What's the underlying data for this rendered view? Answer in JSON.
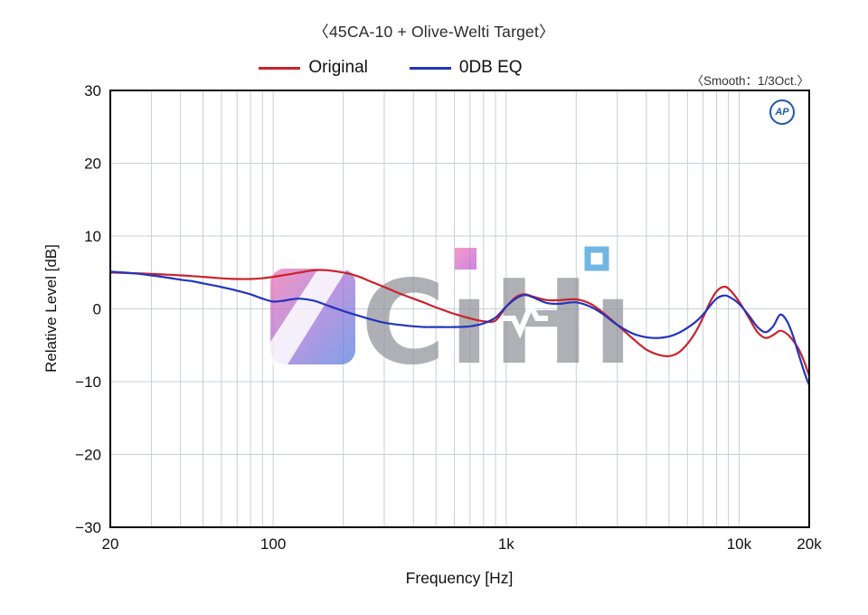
{
  "chart_data": {
    "type": "line",
    "title": "〈45CA-10 + Olive-Welti Target〉",
    "smooth_note": "〈Smooth：1/3Oct.〉",
    "xlabel": "Frequency [Hz]",
    "ylabel": "Relative Level [dB]",
    "x_scale": "log",
    "xlim": [
      20,
      20000
    ],
    "ylim": [
      -30,
      30
    ],
    "grid": true,
    "grid_color": "#c9ced8",
    "axis_color": "#000000",
    "legend_position": "top-center",
    "x_ticks": [
      {
        "value": 20,
        "label": "20"
      },
      {
        "value": 100,
        "label": "100"
      },
      {
        "value": 1000,
        "label": "1k"
      },
      {
        "value": 10000,
        "label": "10k"
      },
      {
        "value": 20000,
        "label": "20k"
      }
    ],
    "y_ticks": [
      {
        "value": 30,
        "label": "30"
      },
      {
        "value": 20,
        "label": "20"
      },
      {
        "value": 10,
        "label": "10"
      },
      {
        "value": 0,
        "label": "0"
      },
      {
        "value": -10,
        "label": "−10"
      },
      {
        "value": -20,
        "label": "−20"
      },
      {
        "value": -30,
        "label": "−30"
      }
    ],
    "x_gridlines": [
      30,
      40,
      50,
      60,
      70,
      80,
      90,
      100,
      200,
      300,
      400,
      500,
      600,
      700,
      800,
      900,
      1000,
      2000,
      3000,
      4000,
      5000,
      6000,
      7000,
      8000,
      9000,
      10000
    ],
    "y_gridlines": [
      -20,
      -10,
      0,
      10,
      20
    ],
    "x": [
      20,
      25,
      30,
      35,
      40,
      45,
      50,
      60,
      70,
      80,
      90,
      100,
      110,
      120,
      130,
      150,
      170,
      200,
      230,
      260,
      300,
      350,
      400,
      450,
      500,
      600,
      700,
      800,
      900,
      1000,
      1100,
      1200,
      1300,
      1500,
      1700,
      2000,
      2300,
      2600,
      3000,
      3500,
      4000,
      4500,
      5000,
      5500,
      6000,
      6500,
      7000,
      7500,
      8000,
      8500,
      9000,
      10000,
      11000,
      12000,
      13000,
      14000,
      15000,
      16000,
      17000,
      18000,
      19000,
      20000
    ],
    "series": [
      {
        "name": "Original",
        "color": "#c8232c",
        "values": [
          5.0,
          4.9,
          4.8,
          4.7,
          4.6,
          4.5,
          4.4,
          4.2,
          4.1,
          4.1,
          4.2,
          4.4,
          4.6,
          4.8,
          5.0,
          5.3,
          5.3,
          5.0,
          4.5,
          3.8,
          3.0,
          2.1,
          1.4,
          0.8,
          0.2,
          -0.7,
          -1.3,
          -1.7,
          -1.6,
          0.3,
          1.6,
          2.0,
          1.7,
          1.2,
          1.2,
          1.3,
          0.7,
          -0.5,
          -2.2,
          -4.1,
          -5.6,
          -6.3,
          -6.5,
          -6.0,
          -4.8,
          -3.2,
          -1.2,
          0.9,
          2.4,
          3.0,
          2.8,
          1.0,
          -1.2,
          -3.2,
          -4.0,
          -3.6,
          -3.0,
          -3.4,
          -4.3,
          -5.5,
          -7.2,
          -9.2
        ]
      },
      {
        "name": "0DB EQ",
        "color": "#2334bc",
        "values": [
          5.1,
          4.9,
          4.6,
          4.3,
          4.0,
          3.8,
          3.5,
          3.0,
          2.5,
          2.0,
          1.4,
          1.0,
          1.1,
          1.3,
          1.4,
          1.1,
          0.5,
          -0.3,
          -0.9,
          -1.4,
          -1.9,
          -2.2,
          -2.4,
          -2.5,
          -2.5,
          -2.5,
          -2.4,
          -2.0,
          -1.2,
          0.3,
          1.4,
          1.9,
          1.6,
          0.8,
          0.7,
          0.9,
          0.3,
          -0.7,
          -2.2,
          -3.4,
          -3.9,
          -4.0,
          -3.8,
          -3.3,
          -2.6,
          -1.8,
          -0.8,
          0.4,
          1.4,
          1.8,
          1.7,
          0.7,
          -0.9,
          -2.5,
          -3.2,
          -2.4,
          -0.8,
          -1.6,
          -3.6,
          -6.2,
          -8.6,
          -10.5
        ]
      }
    ]
  },
  "logo": {
    "text": "AP"
  },
  "watermark": {
    "text": "CıHı"
  }
}
